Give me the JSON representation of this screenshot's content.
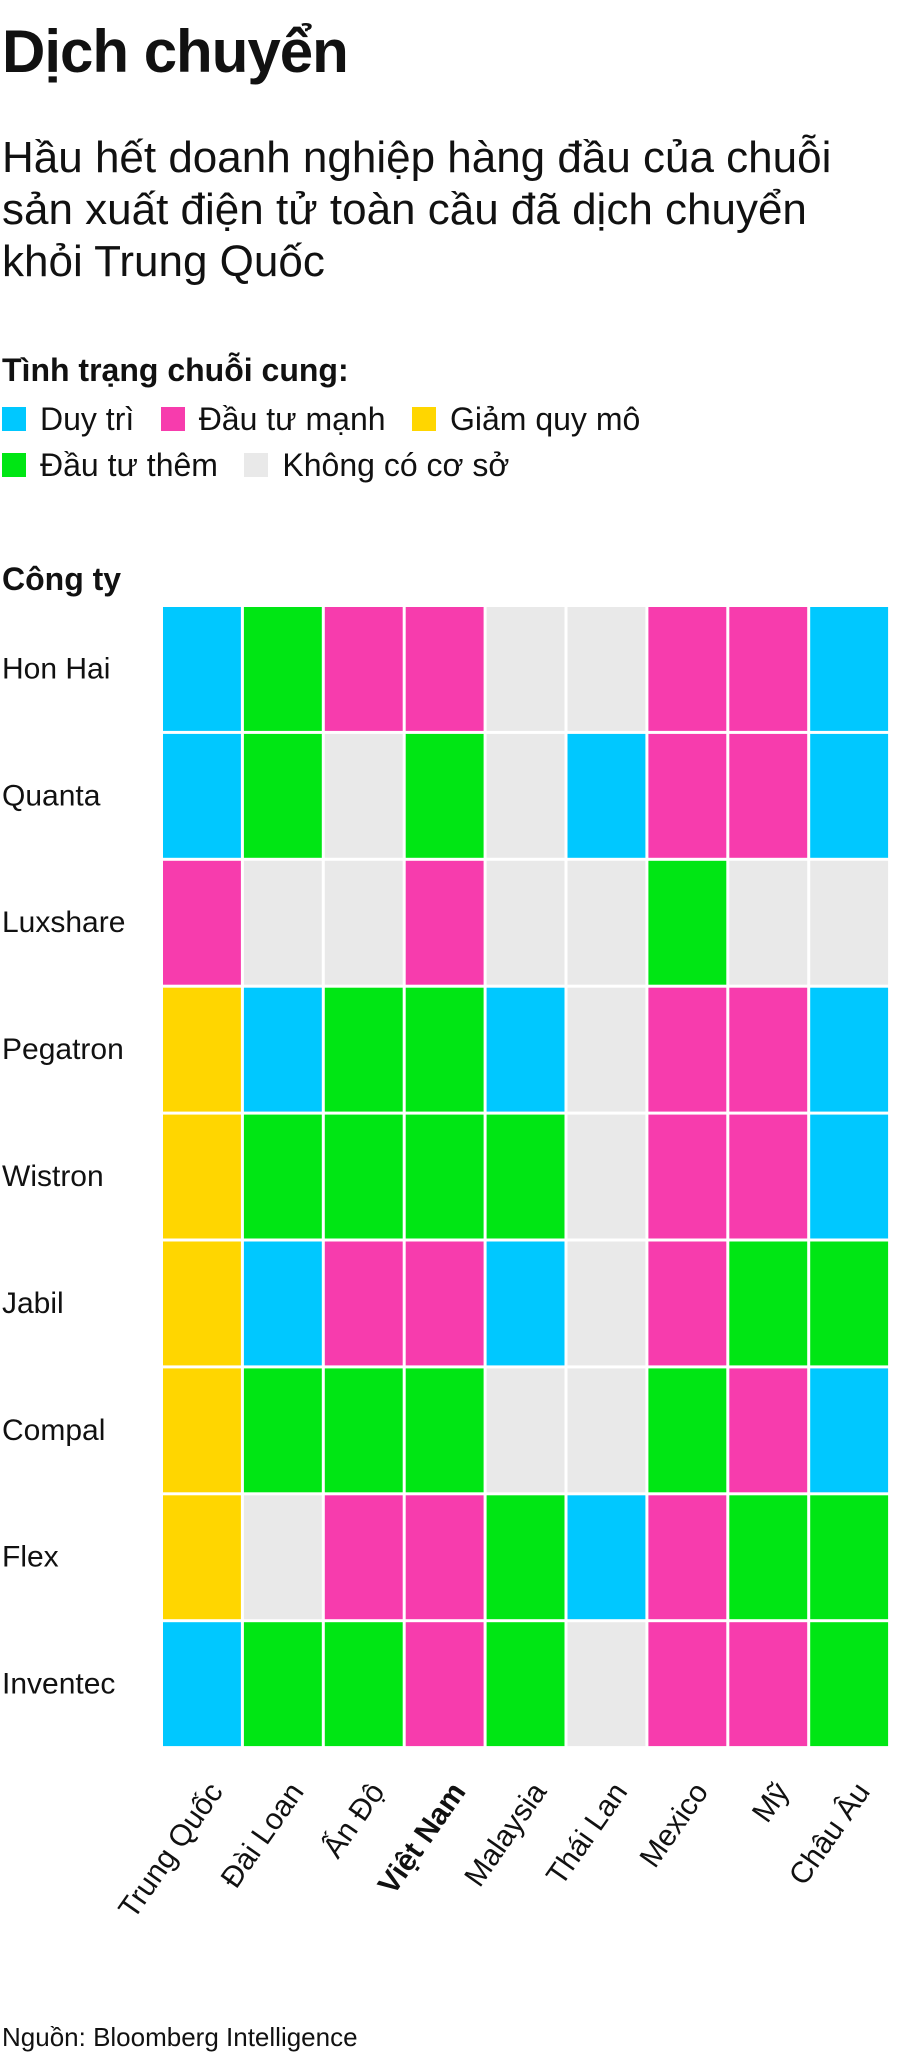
{
  "title": "Dịch chuyển",
  "subtitle": "Hầu hết doanh nghiệp hàng đầu của chuỗi sản xuất điện tử toàn cầu đã dịch chuyển khỏi Trung Quốc",
  "legend": {
    "title": "Tình trạng chuỗi cung:",
    "items": [
      {
        "key": "duy_tri",
        "label": "Duy trì",
        "color": "#00c8ff"
      },
      {
        "key": "dau_tu_manh",
        "label": "Đầu tư mạnh",
        "color": "#f73cad"
      },
      {
        "key": "giam_quy_mo",
        "label": "Giảm quy mô",
        "color": "#ffd600"
      },
      {
        "key": "dau_tu_them",
        "label": "Đầu tư thêm",
        "color": "#00e614"
      },
      {
        "key": "khong_co_co_so",
        "label": "Không có cơ sở",
        "color": "#e9e9e9"
      }
    ]
  },
  "chart_data": {
    "type": "heatmap",
    "row_header": "Công ty",
    "rows": [
      "Hon Hai",
      "Quanta",
      "Luxshare",
      "Pegatron",
      "Wistron",
      "Jabil",
      "Compal",
      "Flex",
      "Inventec"
    ],
    "columns": [
      "Trung Quốc",
      "Đài Loan",
      "Ấn Độ",
      "Việt Nam",
      "Malaysia",
      "Thái Lan",
      "Mexico",
      "Mỹ",
      "Châu Âu"
    ],
    "highlight_column": "Việt Nam",
    "values": [
      [
        "duy_tri",
        "dau_tu_them",
        "dau_tu_manh",
        "dau_tu_manh",
        "khong_co_co_so",
        "khong_co_co_so",
        "dau_tu_manh",
        "dau_tu_manh",
        "duy_tri"
      ],
      [
        "duy_tri",
        "dau_tu_them",
        "khong_co_co_so",
        "dau_tu_them",
        "khong_co_co_so",
        "duy_tri",
        "dau_tu_manh",
        "dau_tu_manh",
        "duy_tri"
      ],
      [
        "dau_tu_manh",
        "khong_co_co_so",
        "khong_co_co_so",
        "dau_tu_manh",
        "khong_co_co_so",
        "khong_co_co_so",
        "dau_tu_them",
        "khong_co_co_so",
        "khong_co_co_so"
      ],
      [
        "giam_quy_mo",
        "duy_tri",
        "dau_tu_them",
        "dau_tu_them",
        "duy_tri",
        "khong_co_co_so",
        "dau_tu_manh",
        "dau_tu_manh",
        "duy_tri"
      ],
      [
        "giam_quy_mo",
        "dau_tu_them",
        "dau_tu_them",
        "dau_tu_them",
        "dau_tu_them",
        "khong_co_co_so",
        "dau_tu_manh",
        "dau_tu_manh",
        "duy_tri"
      ],
      [
        "giam_quy_mo",
        "duy_tri",
        "dau_tu_manh",
        "dau_tu_manh",
        "duy_tri",
        "khong_co_co_so",
        "dau_tu_manh",
        "dau_tu_them",
        "dau_tu_them"
      ],
      [
        "giam_quy_mo",
        "dau_tu_them",
        "dau_tu_them",
        "dau_tu_them",
        "khong_co_co_so",
        "khong_co_co_so",
        "dau_tu_them",
        "dau_tu_manh",
        "duy_tri"
      ],
      [
        "giam_quy_mo",
        "khong_co_co_so",
        "dau_tu_manh",
        "dau_tu_manh",
        "dau_tu_them",
        "duy_tri",
        "dau_tu_manh",
        "dau_tu_them",
        "dau_tu_them"
      ],
      [
        "duy_tri",
        "dau_tu_them",
        "dau_tu_them",
        "dau_tu_manh",
        "dau_tu_them",
        "khong_co_co_so",
        "dau_tu_manh",
        "dau_tu_manh",
        "dau_tu_them"
      ]
    ]
  },
  "source": "Nguồn: Bloomberg Intelligence"
}
